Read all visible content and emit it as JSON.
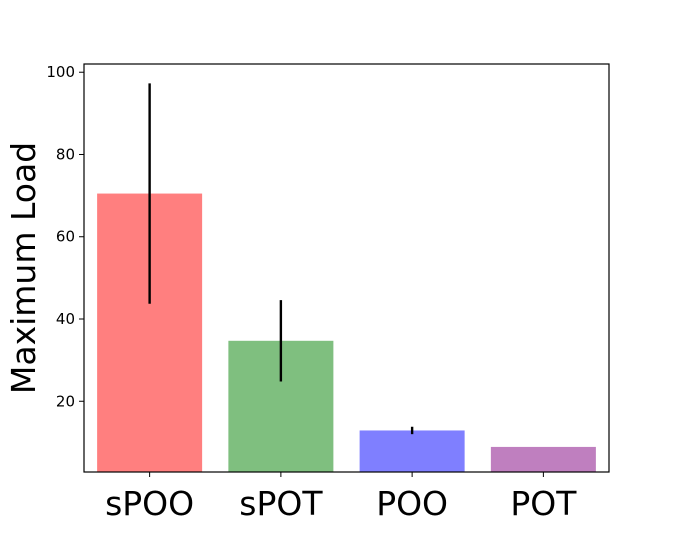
{
  "chart_data": {
    "type": "bar",
    "title": "",
    "xlabel": "",
    "ylabel": "Maximum Load",
    "categories": [
      "sPOO",
      "sPOT",
      "POO",
      "POT"
    ],
    "values": [
      70.5,
      34.7,
      12.9,
      8.9
    ],
    "error": [
      26.8,
      9.9,
      0.9,
      0
    ],
    "colors": [
      "#ff7f7f",
      "#7fbf7f",
      "#7f7fff",
      "#bf7fbf"
    ],
    "ylim": [
      2.8,
      102
    ],
    "yticks": [
      20,
      40,
      60,
      80,
      100
    ],
    "grid": false,
    "legend": false
  }
}
